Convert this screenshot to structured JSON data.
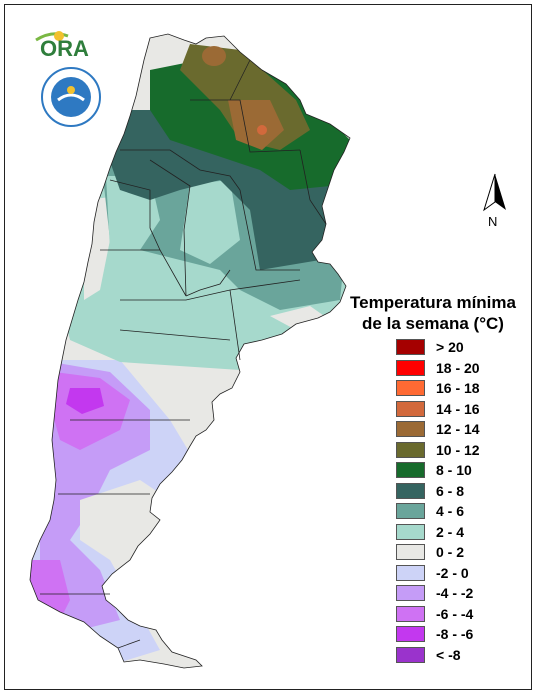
{
  "logos": {
    "ora_text": "ORA",
    "smn_text": "SERVICIO METEOROLÓGICO NACIONAL ARGENTINA"
  },
  "north_label": "N",
  "legend": {
    "title_line1": "Temperatura mínima",
    "title_line2": "de la semana (°C)",
    "items": [
      {
        "label": "> 20",
        "color": "#a50000"
      },
      {
        "label": "18 - 20",
        "color": "#ff0000"
      },
      {
        "label": "16 - 18",
        "color": "#ff6a33"
      },
      {
        "label": "14 - 16",
        "color": "#d2693c"
      },
      {
        "label": "12 - 14",
        "color": "#9b6a35"
      },
      {
        "label": "10 - 12",
        "color": "#6a6a2e"
      },
      {
        "label": "8 - 10",
        "color": "#176b2c"
      },
      {
        "label": "6 - 8",
        "color": "#356460"
      },
      {
        "label": "4 - 6",
        "color": "#6aa59b"
      },
      {
        "label": "2 - 4",
        "color": "#a6d9cc"
      },
      {
        "label": "0 - 2",
        "color": "#e8e8e5"
      },
      {
        "label": "-2 - 0",
        "color": "#cdd3f7"
      },
      {
        "label": "-4 - -2",
        "color": "#c59cf7"
      },
      {
        "label": "-6 - -4",
        "color": "#cf72f3"
      },
      {
        "label": "-8 - -6",
        "color": "#c338ef"
      },
      {
        "label": "< -8",
        "color": "#9a33cc"
      }
    ]
  },
  "map_colors": {
    "c_neg6": "#cf72f3",
    "c_neg4": "#c59cf7",
    "c_neg2": "#cdd3f7",
    "c_0": "#e8e8e5",
    "c_2": "#a6d9cc",
    "c_4": "#6aa59b",
    "c_6": "#356460",
    "c_8": "#176b2c",
    "c_10": "#6a6a2e",
    "c_12": "#9b6a35",
    "c_14": "#d2693c"
  }
}
